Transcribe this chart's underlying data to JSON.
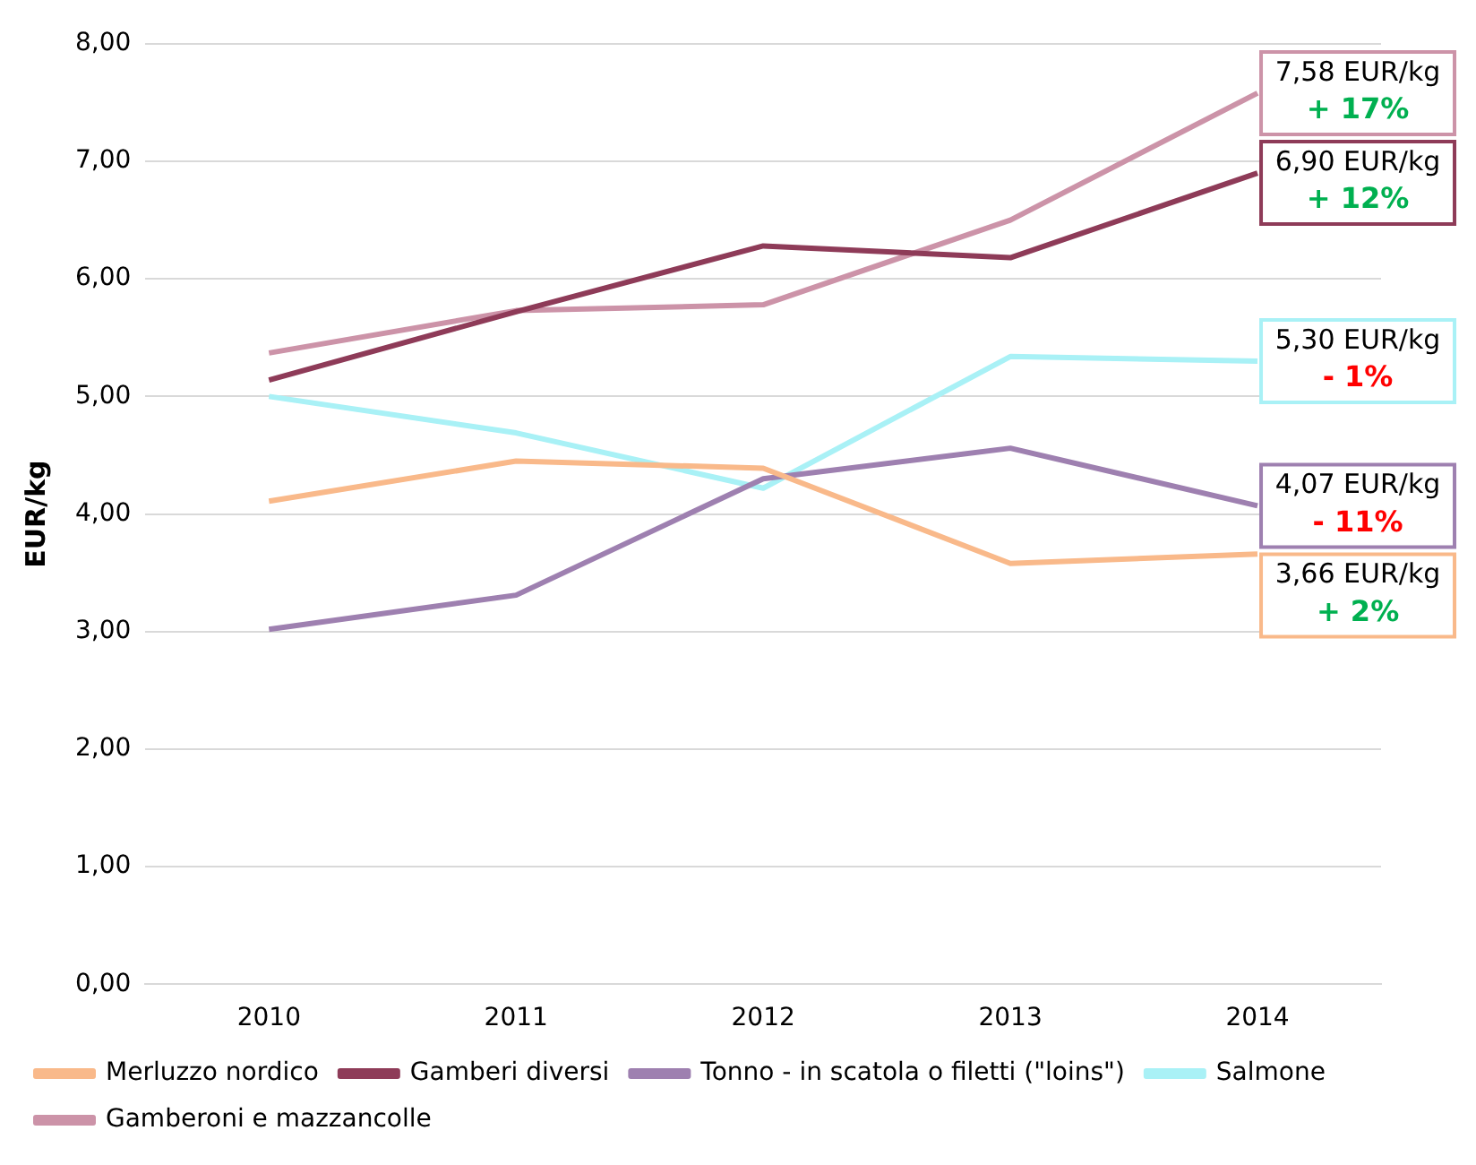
{
  "chart_data": {
    "type": "line",
    "ylabel": "EUR/kg",
    "categories": [
      "2010",
      "2011",
      "2012",
      "2013",
      "2014"
    ],
    "series": [
      {
        "name": "Merluzzo nordico",
        "color": "#f9b98a",
        "values": [
          4.11,
          4.45,
          4.39,
          3.58,
          3.66
        ]
      },
      {
        "name": "Gamberi diversi",
        "color": "#8e3b58",
        "values": [
          5.14,
          5.72,
          6.28,
          6.18,
          6.9
        ]
      },
      {
        "name": "Tonno - in scatola o filetti (\"loins\")",
        "color": "#9e80b0",
        "values": [
          3.02,
          3.31,
          4.3,
          4.56,
          4.07
        ]
      },
      {
        "name": "Salmone",
        "color": "#a9f1f6",
        "values": [
          5.0,
          4.69,
          4.22,
          5.34,
          5.3
        ]
      },
      {
        "name": "Gamberoni e mazzancolle",
        "color": "#cc93a8",
        "values": [
          5.37,
          5.73,
          5.78,
          6.5,
          7.58
        ]
      }
    ],
    "annotations": [
      {
        "text": "3,66 EUR/kg\n+ 2%",
        "x": "2014",
        "y": 3.66
      },
      {
        "text": "6,90 EUR/kg\n+ 12%",
        "x": "2014",
        "y": 6.9
      },
      {
        "text": "4,07 EUR/kg\n- 11%",
        "x": "2014",
        "y": 4.07
      },
      {
        "text": "5,30 EUR/kg\n- 1%",
        "x": "2014",
        "y": 5.3
      },
      {
        "text": "7,58 EUR/kg\n+ 17%",
        "x": "2014",
        "y": 7.58
      }
    ],
    "ylim": [
      0,
      8
    ],
    "yticks": [
      {
        "value": 0,
        "label": "0,00"
      },
      {
        "value": 1,
        "label": "1,00"
      },
      {
        "value": 2,
        "label": "2,00"
      },
      {
        "value": 3,
        "label": "3,00"
      },
      {
        "value": 4,
        "label": "4,00"
      },
      {
        "value": 5,
        "label": "5,00"
      },
      {
        "value": 6,
        "label": "6,00"
      },
      {
        "value": 7,
        "label": "7,00"
      },
      {
        "value": 8,
        "label": "8,00"
      }
    ],
    "grid": "y",
    "legend": "bottom",
    "marker": "none",
    "line_style": "solid"
  }
}
